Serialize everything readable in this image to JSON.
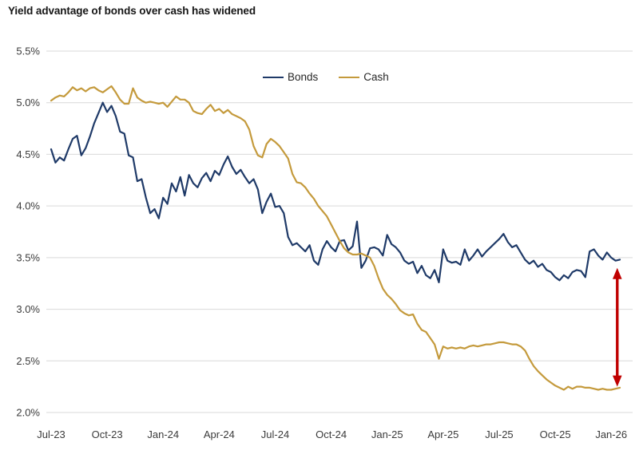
{
  "title": "Yield advantage of bonds over cash has widened",
  "legend": {
    "items": [
      {
        "label": "Bonds",
        "color": "#1f3a68"
      },
      {
        "label": "Cash",
        "color": "#c49a3c"
      }
    ]
  },
  "colors": {
    "bonds": "#1f3a68",
    "cash": "#c49a3c",
    "arrow": "#c00000",
    "gridline": "#d9d9d9",
    "axis_text": "#3b3b3b",
    "background": "#ffffff"
  },
  "chart_data": {
    "type": "line",
    "title": "Yield advantage of bonds over cash has widened",
    "xlabel": "",
    "ylabel": "",
    "ylim": [
      2.0,
      5.5
    ],
    "grid": "horizontal",
    "legend_position": "top-center-inside",
    "y_ticks": [
      {
        "label": "5.5%",
        "value": 5.5
      },
      {
        "label": "5.0%",
        "value": 5.0
      },
      {
        "label": "4.5%",
        "value": 4.5
      },
      {
        "label": "4.0%",
        "value": 4.0
      },
      {
        "label": "3.5%",
        "value": 3.5
      },
      {
        "label": "3.0%",
        "value": 3.0
      },
      {
        "label": "2.5%",
        "value": 2.5
      },
      {
        "label": "2.0%",
        "value": 2.0
      }
    ],
    "x_ticks": [
      {
        "label": "Jul-23",
        "index": 0
      },
      {
        "label": "Oct-23",
        "index": 13
      },
      {
        "label": "Jan-24",
        "index": 26
      },
      {
        "label": "Apr-24",
        "index": 39
      },
      {
        "label": "Jul-24",
        "index": 52
      },
      {
        "label": "Oct-24",
        "index": 65
      },
      {
        "label": "Jan-25",
        "index": 78
      },
      {
        "label": "Apr-25",
        "index": 91
      },
      {
        "label": "Jul-25",
        "index": 104
      },
      {
        "label": "Oct-25",
        "index": 117
      },
      {
        "label": "Jan-26",
        "index": 130
      }
    ],
    "x_unit": "weeks",
    "series": [
      {
        "name": "Bonds",
        "color": "#1f3a68",
        "values": [
          4.55,
          4.42,
          4.47,
          4.44,
          4.55,
          4.65,
          4.68,
          4.49,
          4.56,
          4.67,
          4.8,
          4.9,
          5.0,
          4.91,
          4.97,
          4.87,
          4.72,
          4.7,
          4.49,
          4.47,
          4.24,
          4.26,
          4.08,
          3.93,
          3.97,
          3.88,
          4.08,
          4.02,
          4.22,
          4.14,
          4.28,
          4.1,
          4.3,
          4.22,
          4.18,
          4.27,
          4.32,
          4.24,
          4.34,
          4.3,
          4.4,
          4.48,
          4.38,
          4.31,
          4.35,
          4.28,
          4.22,
          4.26,
          4.16,
          3.93,
          4.04,
          4.12,
          3.99,
          4.0,
          3.93,
          3.7,
          3.62,
          3.64,
          3.6,
          3.56,
          3.62,
          3.47,
          3.43,
          3.58,
          3.66,
          3.6,
          3.56,
          3.66,
          3.67,
          3.57,
          3.61,
          3.85,
          3.4,
          3.47,
          3.59,
          3.6,
          3.58,
          3.52,
          3.72,
          3.63,
          3.6,
          3.55,
          3.47,
          3.44,
          3.46,
          3.35,
          3.42,
          3.33,
          3.3,
          3.38,
          3.26,
          3.58,
          3.47,
          3.45,
          3.46,
          3.43,
          3.58,
          3.47,
          3.52,
          3.58,
          3.51,
          3.56,
          3.6,
          3.64,
          3.68,
          3.73,
          3.65,
          3.6,
          3.62,
          3.55,
          3.48,
          3.44,
          3.47,
          3.41,
          3.44,
          3.38,
          3.36,
          3.31,
          3.28,
          3.33,
          3.3,
          3.36,
          3.38,
          3.37,
          3.31,
          3.56,
          3.58,
          3.52,
          3.48,
          3.55,
          3.5,
          3.47,
          3.48
        ]
      },
      {
        "name": "Cash",
        "color": "#c49a3c",
        "values": [
          5.02,
          5.05,
          5.07,
          5.06,
          5.1,
          5.15,
          5.12,
          5.14,
          5.11,
          5.14,
          5.15,
          5.12,
          5.1,
          5.13,
          5.16,
          5.1,
          5.03,
          4.99,
          4.99,
          5.14,
          5.05,
          5.02,
          5.0,
          5.01,
          5.0,
          4.99,
          5.0,
          4.96,
          5.01,
          5.06,
          5.03,
          5.03,
          5.0,
          4.92,
          4.9,
          4.89,
          4.94,
          4.98,
          4.92,
          4.94,
          4.9,
          4.93,
          4.89,
          4.87,
          4.85,
          4.82,
          4.74,
          4.58,
          4.49,
          4.47,
          4.6,
          4.65,
          4.62,
          4.58,
          4.52,
          4.46,
          4.31,
          4.23,
          4.22,
          4.18,
          4.12,
          4.07,
          4.0,
          3.95,
          3.9,
          3.82,
          3.74,
          3.66,
          3.59,
          3.55,
          3.53,
          3.53,
          3.54,
          3.52,
          3.5,
          3.42,
          3.3,
          3.2,
          3.14,
          3.1,
          3.05,
          2.99,
          2.96,
          2.94,
          2.95,
          2.86,
          2.8,
          2.78,
          2.72,
          2.66,
          2.52,
          2.64,
          2.62,
          2.63,
          2.62,
          2.63,
          2.62,
          2.64,
          2.65,
          2.64,
          2.65,
          2.66,
          2.66,
          2.67,
          2.68,
          2.68,
          2.67,
          2.66,
          2.66,
          2.64,
          2.6,
          2.52,
          2.45,
          2.4,
          2.36,
          2.32,
          2.29,
          2.26,
          2.24,
          2.22,
          2.25,
          2.23,
          2.25,
          2.25,
          2.24,
          2.24,
          2.23,
          2.22,
          2.23,
          2.22,
          2.22,
          2.23,
          2.24
        ]
      }
    ],
    "annotation": {
      "type": "vertical-double-arrow",
      "description": "gap between bonds and cash yields at far right",
      "color": "#c00000",
      "x_index": 131.4,
      "value_top": 3.4,
      "value_bottom": 2.25
    }
  }
}
